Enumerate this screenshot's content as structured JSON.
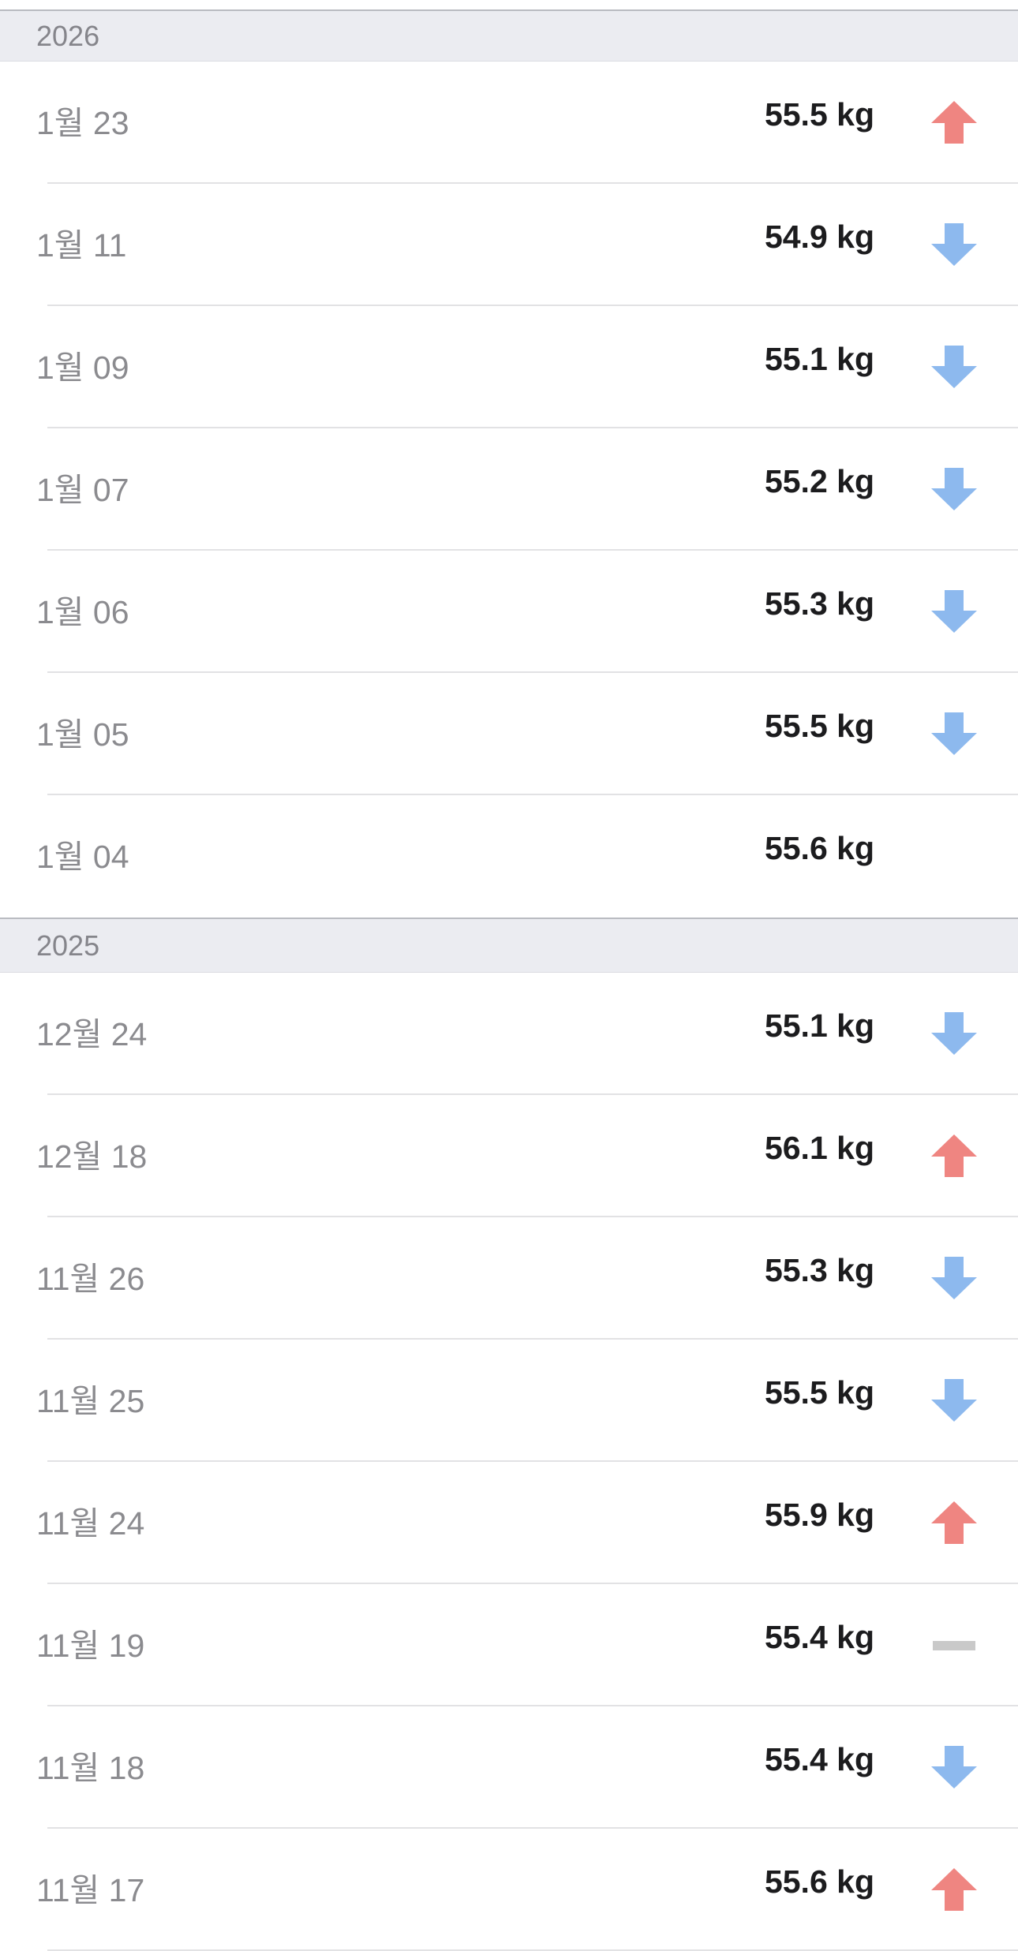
{
  "colors": {
    "up": "#ef8581",
    "down": "#8db9ee",
    "same": "#c9c9c9"
  },
  "sections": [
    {
      "year": "2026",
      "entries": [
        {
          "date": "1월 23",
          "weight": "55.5 kg",
          "trend": "up"
        },
        {
          "date": "1월 11",
          "weight": "54.9 kg",
          "trend": "down"
        },
        {
          "date": "1월 09",
          "weight": "55.1 kg",
          "trend": "down"
        },
        {
          "date": "1월 07",
          "weight": "55.2 kg",
          "trend": "down"
        },
        {
          "date": "1월 06",
          "weight": "55.3 kg",
          "trend": "down"
        },
        {
          "date": "1월 05",
          "weight": "55.5 kg",
          "trend": "down"
        },
        {
          "date": "1월 04",
          "weight": "55.6 kg",
          "trend": "none"
        }
      ]
    },
    {
      "year": "2025",
      "entries": [
        {
          "date": "12월 24",
          "weight": "55.1 kg",
          "trend": "down"
        },
        {
          "date": "12월 18",
          "weight": "56.1 kg",
          "trend": "up"
        },
        {
          "date": "11월 26",
          "weight": "55.3 kg",
          "trend": "down"
        },
        {
          "date": "11월 25",
          "weight": "55.5 kg",
          "trend": "down"
        },
        {
          "date": "11월 24",
          "weight": "55.9 kg",
          "trend": "up"
        },
        {
          "date": "11월 19",
          "weight": "55.4 kg",
          "trend": "same"
        },
        {
          "date": "11월 18",
          "weight": "55.4 kg",
          "trend": "down"
        },
        {
          "date": "11월 17",
          "weight": "55.6 kg",
          "trend": "up"
        }
      ]
    }
  ]
}
